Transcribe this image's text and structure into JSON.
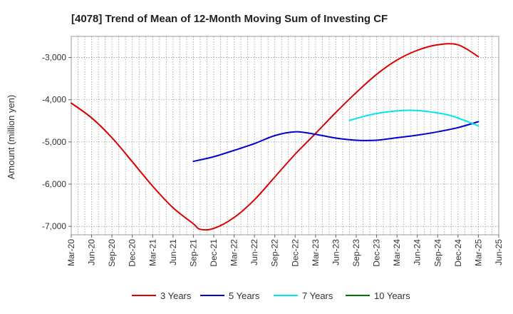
{
  "chart_data": {
    "type": "line",
    "title": "[4078]  Trend of Mean of 12-Month Moving Sum of Investing CF",
    "xlabel": "",
    "ylabel": "Amount (million yen)",
    "ylim": [
      -7200,
      -2500
    ],
    "y_ticks": [
      -7000,
      -6000,
      -5000,
      -4000,
      -3000
    ],
    "y_tick_labels": [
      "-7,000",
      "-6,000",
      "-5,000",
      "-4,000",
      "-3,000"
    ],
    "x_tick_labels": [
      "Mar-20",
      "Jun-20",
      "Sep-20",
      "Dec-20",
      "Mar-21",
      "Jun-21",
      "Sep-21",
      "Dec-21",
      "Mar-22",
      "Jun-22",
      "Sep-22",
      "Dec-22",
      "Mar-23",
      "Jun-23",
      "Sep-23",
      "Dec-23",
      "Mar-24",
      "Jun-24",
      "Sep-24",
      "Dec-24",
      "Mar-25",
      "Jun-25"
    ],
    "grid": true,
    "legend_position": "bottom",
    "series": [
      {
        "name": "3 Years",
        "color": "#dd0000",
        "x": [
          0,
          3,
          6,
          9,
          12,
          15,
          18,
          19,
          21,
          24,
          27,
          30,
          33,
          36,
          39,
          42,
          45,
          48,
          51,
          54,
          57,
          60
        ],
        "values": [
          -4080,
          -4430,
          -4900,
          -5470,
          -6050,
          -6560,
          -6940,
          -7070,
          -7050,
          -6790,
          -6370,
          -5830,
          -5290,
          -4800,
          -4300,
          -3830,
          -3400,
          -3060,
          -2830,
          -2700,
          -2700,
          -2980
        ]
      },
      {
        "name": "5 Years",
        "color": "#0000cc",
        "x": [
          18,
          21,
          24,
          27,
          30,
          33,
          36,
          39,
          42,
          45,
          48,
          51,
          54,
          57,
          60
        ],
        "values": [
          -5460,
          -5350,
          -5200,
          -5040,
          -4850,
          -4760,
          -4820,
          -4910,
          -4960,
          -4960,
          -4900,
          -4840,
          -4760,
          -4660,
          -4520
        ]
      },
      {
        "name": "7 Years",
        "color": "#00e5ee",
        "x": [
          41,
          44,
          47,
          50,
          53,
          56,
          60
        ],
        "values": [
          -4490,
          -4360,
          -4280,
          -4250,
          -4290,
          -4380,
          -4620
        ]
      },
      {
        "name": "10 Years",
        "color": "#007700",
        "x": [],
        "values": []
      }
    ]
  }
}
